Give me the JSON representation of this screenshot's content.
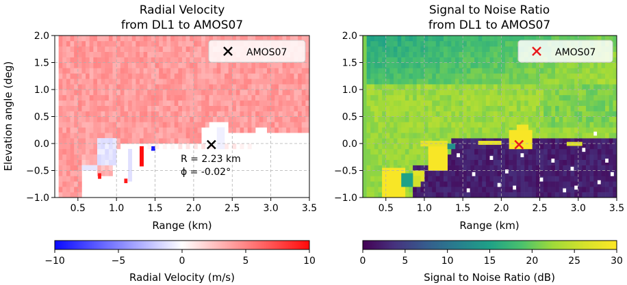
{
  "chart_data": [
    {
      "type": "heatmap",
      "title": "Radial Velocity",
      "subtitle": "from DL1 to AMOS07",
      "xlabel": "Range (km)",
      "ylabel": "Elevation angle (deg)",
      "xlim": [
        0.2,
        3.5
      ],
      "ylim": [
        -1.0,
        2.0
      ],
      "xticks": [
        "0.5",
        "1.0",
        "1.5",
        "2.0",
        "2.5",
        "3.0",
        "3.5"
      ],
      "yticks": [
        "−1.0",
        "−0.5",
        "0.0",
        "0.5",
        "1.0",
        "1.5",
        "2.0"
      ],
      "grid": true,
      "legend": {
        "position": "top-right",
        "label": "AMOS07",
        "marker_color": "#000000"
      },
      "target": {
        "range_km": 2.23,
        "elevation_deg": -0.02
      },
      "annotation_lines": [
        "R = 2.23 km",
        "ϕ = -0.02°"
      ],
      "colorbar": {
        "label": "Radial Velocity (m/s)",
        "range": [
          -10,
          10
        ],
        "ticks": [
          "−10",
          "−5",
          "0",
          "5",
          "10"
        ],
        "colormap": "bwr"
      }
    },
    {
      "type": "heatmap",
      "title": "Signal to Noise Ratio",
      "subtitle": "from DL1 to AMOS07",
      "xlabel": "Range (km)",
      "ylabel": "",
      "xlim": [
        0.2,
        3.5
      ],
      "ylim": [
        -1.0,
        2.0
      ],
      "xticks": [
        "0.5",
        "1.0",
        "1.5",
        "2.0",
        "2.5",
        "3.0",
        "3.5"
      ],
      "yticks": [
        "−1.0",
        "−0.5",
        "0.0",
        "0.5",
        "1.0",
        "1.5",
        "2.0"
      ],
      "grid": true,
      "legend": {
        "position": "top-right",
        "label": "AMOS07",
        "marker_color": "#e8191c"
      },
      "target": {
        "range_km": 2.23,
        "elevation_deg": -0.02
      },
      "colorbar": {
        "label": "Signal to Noise Ratio (dB)",
        "range": [
          0,
          30
        ],
        "ticks": [
          "0",
          "5",
          "10",
          "15",
          "20",
          "25",
          "30"
        ],
        "colormap": "viridis"
      }
    }
  ]
}
